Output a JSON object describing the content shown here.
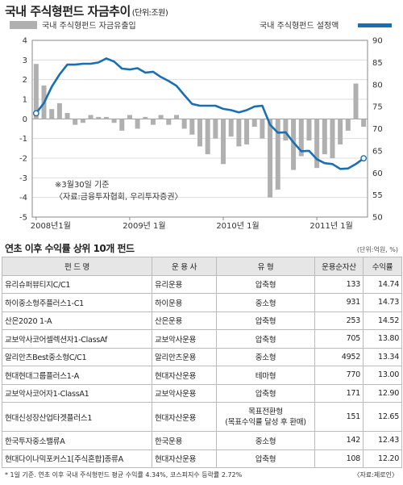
{
  "chart_title": "국내 주식형펀드 자금추이",
  "chart_unit": "(단위:조원)",
  "chart_data": {
    "type": "bar+line",
    "legend": [
      "국내 주식형펀드 자금유출입",
      "국내 주식형펀드 설정액"
    ],
    "legend_placement": "top",
    "bar_series": {
      "name": "국내 주식형펀드 자금유출입",
      "axis": "left",
      "values": [
        2.8,
        1.7,
        0.5,
        0.8,
        0.3,
        -0.3,
        -0.2,
        0.2,
        0.1,
        0.1,
        -0.2,
        -0.6,
        0.2,
        -0.5,
        0.1,
        -0.3,
        0.2,
        -0.3,
        0.2,
        -0.5,
        -0.8,
        -1.4,
        -1.8,
        -1.0,
        -2.3,
        -0.9,
        -1.4,
        -1.3,
        -0.4,
        -1.0,
        -4.0,
        -3.6,
        -1.1,
        -2.6,
        -1.9,
        -1.1,
        -2.5,
        -1.8,
        -2.0,
        -1.3,
        -0.6,
        1.8,
        -0.4
      ]
    },
    "line_series": {
      "name": "국내 주식형펀드 설정액",
      "axis": "right",
      "values": [
        73.5,
        75.8,
        79.5,
        82.3,
        84.5,
        84.5,
        84.7,
        84.7,
        85.0,
        85.9,
        85.2,
        83.6,
        83.4,
        83.7,
        82.7,
        82.9,
        81.7,
        80.8,
        79.7,
        77.6,
        75.6,
        75.2,
        75.2,
        75.2,
        74.5,
        74.2,
        73.7,
        74.2,
        75.0,
        75.2,
        70.9,
        69.1,
        69.2,
        66.9,
        64.9,
        65.0,
        63.1,
        62.2,
        62.0,
        60.9,
        61.0,
        62.0,
        63.3
      ]
    },
    "x_tick_labels": [
      "2008년1월",
      "2009년 1월",
      "2010년 1월",
      "2011년 1월"
    ],
    "ylim_left": [
      -5,
      4
    ],
    "ylim_right": [
      50,
      90
    ],
    "y_ticks_left": [
      4,
      3,
      2,
      1,
      0,
      -1,
      -2,
      -3,
      -4,
      -5
    ],
    "y_ticks_right": [
      90,
      85,
      80,
      75,
      70,
      65,
      60,
      55,
      50
    ],
    "annotations": [
      "※3월30일 기준",
      "〈자료:금융투자협회, 우리투자증권〉"
    ],
    "grid": "horizontal",
    "colors": {
      "bars": "#b0b0b0",
      "line": "#1a6fb3"
    }
  },
  "table": {
    "title": "연초 이후 수익률 상위 10개 펀드",
    "unit": "(단위:억원, %)",
    "headers": [
      "펀  드  명",
      "운 용 사",
      "유  형",
      "운용순자산",
      "수익률"
    ],
    "rows": [
      {
        "name": "유리슈퍼뷰티지C/C1",
        "company": "유리운용",
        "type": "압축형",
        "assets": "133",
        "return": "14.74"
      },
      {
        "name": "하이중소형주플러스1-C1",
        "company": "하이운용",
        "type": "중소형",
        "assets": "931",
        "return": "14.73"
      },
      {
        "name": "산은2020 1-A",
        "company": "산은운용",
        "type": "압축형",
        "assets": "253",
        "return": "14.52"
      },
      {
        "name": "교보악사코어셀렉션자1-ClassAf",
        "company": "교보악사운용",
        "type": "압축형",
        "assets": "705",
        "return": "13.80"
      },
      {
        "name": "알리안츠Best중소형C/C1",
        "company": "알리안츠운용",
        "type": "중소형",
        "assets": "4952",
        "return": "13.34"
      },
      {
        "name": "현대현대그룹플러스1-A",
        "company": "현대자산운용",
        "type": "테마형",
        "assets": "770",
        "return": "13.00"
      },
      {
        "name": "교보악사코어자1-ClassA1",
        "company": "교보악사운용",
        "type": "압축형",
        "assets": "171",
        "return": "12.90"
      },
      {
        "name": "현대신성장산업타겟플러스1",
        "company": "현대자산운용",
        "type": "목표전환형\n(목표수익률 달성 후 환매)",
        "assets": "151",
        "return": "12.65"
      },
      {
        "name": "한국투자중소밸류A",
        "company": "한국운용",
        "type": "중소형",
        "assets": "142",
        "return": "12.43"
      },
      {
        "name": "현대다이나믹포커스1[주식혼합]종류A",
        "company": "현대자산운용",
        "type": "압축형",
        "assets": "108",
        "return": "12.20"
      }
    ]
  },
  "footer_note": "* 1일 기준. 연초 이후 국내 주식형펀드 평균 수익률 4.34%, 코스피지수 등락률 2.72%",
  "footer_source": "〈자료:제로인〉"
}
